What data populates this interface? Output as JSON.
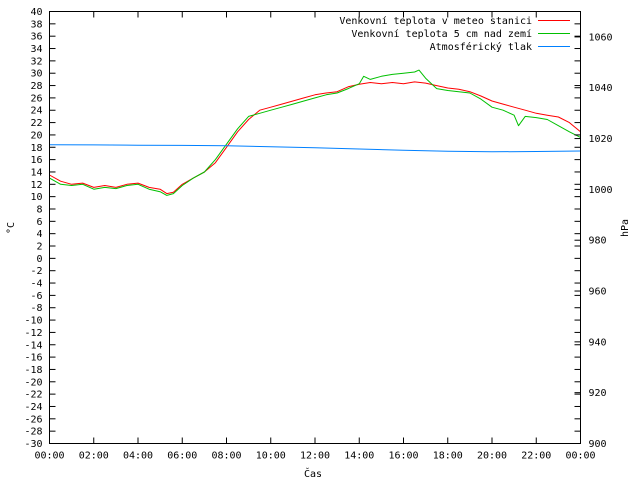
{
  "chart_data": {
    "type": "line",
    "title": "",
    "xlabel": "Čas",
    "ylabel": "°C",
    "y2label": "hPa",
    "xlim": [
      0,
      24
    ],
    "ylim": [
      -30,
      40
    ],
    "y2lim": [
      900,
      1070
    ],
    "grid": false,
    "legend_position": "top-right",
    "x_ticks": [
      "00:00",
      "02:00",
      "04:00",
      "06:00",
      "08:00",
      "10:00",
      "12:00",
      "14:00",
      "16:00",
      "18:00",
      "20:00",
      "22:00",
      "00:00"
    ],
    "y_ticks": [
      "40",
      "38",
      "36",
      "34",
      "32",
      "30",
      "28",
      "26",
      "24",
      "22",
      "20",
      "18",
      "16",
      "14",
      "12",
      "10",
      "8",
      "6",
      "4",
      "2",
      "0",
      "-2",
      "-4",
      "-6",
      "-8",
      "-10",
      "-12",
      "-14",
      "-16",
      "-18",
      "-20",
      "-22",
      "-24",
      "-26",
      "-28",
      "-30"
    ],
    "y2_ticks": [
      "1060",
      "1040",
      "1020",
      "1000",
      "980",
      "960",
      "940",
      "920",
      "900"
    ],
    "series": [
      {
        "name": "Venkovní teplota v meteo stanici",
        "axis": "left",
        "color": "#ff0000",
        "x": [
          0,
          0.5,
          1,
          1.5,
          2,
          2.5,
          3,
          3.5,
          4,
          4.5,
          5,
          5.3,
          5.6,
          6,
          6.5,
          7,
          7.5,
          8,
          8.5,
          9,
          9.5,
          10,
          10.5,
          11,
          11.5,
          12,
          12.5,
          13,
          13.5,
          14,
          14.5,
          15,
          15.5,
          16,
          16.5,
          17,
          17.5,
          18,
          18.5,
          19,
          19.5,
          20,
          20.5,
          21,
          21.5,
          22,
          22.5,
          23,
          23.5,
          24
        ],
        "y": [
          13.5,
          12.5,
          12.0,
          12.2,
          11.5,
          11.8,
          11.5,
          12.0,
          12.2,
          11.5,
          11.2,
          10.5,
          10.7,
          12.0,
          13.0,
          14.0,
          15.5,
          18.0,
          20.5,
          22.5,
          24.0,
          24.5,
          25.0,
          25.5,
          26.0,
          26.5,
          26.8,
          27.0,
          27.8,
          28.2,
          28.5,
          28.3,
          28.5,
          28.3,
          28.6,
          28.4,
          28.0,
          27.6,
          27.4,
          27.0,
          26.3,
          25.5,
          25.0,
          24.5,
          24.0,
          23.5,
          23.2,
          22.9,
          22.0,
          20.5
        ]
      },
      {
        "name": "Venkovní teplota 5 cm nad zemí",
        "axis": "left",
        "color": "#00c000",
        "x": [
          0,
          0.5,
          1,
          1.5,
          2,
          2.5,
          3,
          3.5,
          4,
          4.5,
          5,
          5.3,
          5.6,
          6,
          6.5,
          7,
          7.5,
          8,
          8.5,
          9,
          9.5,
          10,
          10.5,
          11,
          11.5,
          12,
          12.5,
          13,
          13.5,
          14,
          14.2,
          14.5,
          15,
          15.5,
          16,
          16.5,
          16.7,
          17,
          17.5,
          18,
          18.5,
          19,
          19.5,
          20,
          20.5,
          21,
          21.2,
          21.5,
          22,
          22.5,
          23,
          23.5,
          24
        ],
        "y": [
          13.0,
          12.0,
          11.8,
          12.0,
          11.2,
          11.5,
          11.3,
          11.8,
          12.0,
          11.2,
          10.8,
          10.2,
          10.5,
          11.8,
          13.0,
          14.0,
          16.0,
          18.5,
          21.0,
          23.0,
          23.5,
          24.0,
          24.5,
          25.0,
          25.5,
          26.0,
          26.5,
          26.8,
          27.5,
          28.3,
          29.5,
          29.0,
          29.5,
          29.8,
          30.0,
          30.2,
          30.5,
          29.2,
          27.5,
          27.2,
          27.0,
          26.8,
          25.8,
          24.5,
          24.0,
          23.2,
          21.5,
          23.0,
          22.8,
          22.5,
          21.5,
          20.5,
          19.6
        ]
      },
      {
        "name": "Atmosférický tlak",
        "axis": "right",
        "color": "#0080ff",
        "x": [
          0,
          2,
          4,
          6,
          8,
          10,
          12,
          14,
          16,
          18,
          20,
          22,
          24
        ],
        "y": [
          1017.6,
          1017.5,
          1017.4,
          1017.3,
          1017.2,
          1016.8,
          1016.4,
          1015.9,
          1015.4,
          1015.0,
          1014.8,
          1014.9,
          1015.1
        ]
      }
    ]
  }
}
